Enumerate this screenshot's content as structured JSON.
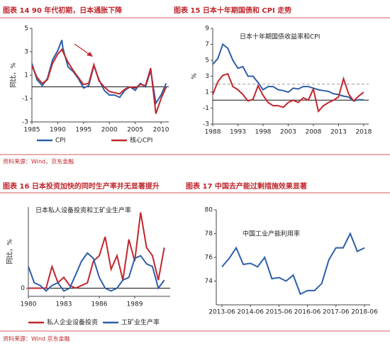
{
  "sources": [
    "资料来源：Wind，京东金融",
    "资料来源：Wind  京东金融"
  ],
  "chart_data": [
    {
      "type": "line",
      "figure_title": "图表 14   90 年代初期，日本通胀下降",
      "ylabel": "同比，%",
      "x": [
        1985,
        1986,
        1987,
        1988,
        1989,
        1990,
        1990.8,
        1991,
        1992,
        1993,
        1994,
        1995,
        1996,
        1997,
        1998,
        1999,
        2000,
        2001,
        2002,
        2003,
        2004,
        2005,
        2006,
        2007,
        2008,
        2009,
        2010,
        2011
      ],
      "series": [
        {
          "name": "CPI",
          "color": "#2e5fa8",
          "values": [
            2.0,
            0.6,
            0.1,
            0.7,
            2.3,
            3.1,
            4.0,
            3.3,
            1.7,
            1.3,
            0.7,
            -0.1,
            0.1,
            1.8,
            0.6,
            -0.3,
            -0.7,
            -0.7,
            -0.9,
            -0.3,
            0.0,
            -0.3,
            0.3,
            0.0,
            1.4,
            -1.4,
            -0.7,
            0.3
          ]
        },
        {
          "name": "核心CPI",
          "color": "#c0272d",
          "values": [
            1.8,
            0.8,
            0.3,
            0.6,
            2.0,
            2.8,
            3.2,
            3.0,
            2.1,
            1.4,
            0.8,
            0.2,
            0.3,
            1.9,
            0.5,
            0.0,
            -0.4,
            -0.5,
            -0.6,
            -0.2,
            0.0,
            -0.1,
            0.2,
            0.1,
            1.6,
            -2.3,
            -1.0,
            0.0
          ]
        }
      ],
      "xlim": [
        1985,
        2011.5
      ],
      "ylim": [
        -3,
        5
      ],
      "xticks": [
        1985,
        1990,
        1995,
        2000,
        2005,
        2010
      ],
      "yticks": [
        -3,
        -1,
        1,
        3,
        5
      ],
      "legend": "bottom"
    },
    {
      "type": "line",
      "figure_title": "图表 15 日本十年期国债和 CPI 走势",
      "title": "日本十年期国债收益率和CPI",
      "ylabel": "%",
      "x": [
        1988,
        1989,
        1990,
        1991,
        1992,
        1993,
        1994,
        1995,
        1996,
        1997,
        1998,
        1999,
        2000,
        2001,
        2002,
        2003,
        2004,
        2005,
        2006,
        2007,
        2008,
        2009,
        2010,
        2011,
        2012,
        2013,
        2014,
        2015,
        2016,
        2017,
        2018
      ],
      "series": [
        {
          "name": "日本十年期国债收益率",
          "color": "#2e5fa8",
          "values": [
            4.5,
            5.2,
            7.0,
            6.5,
            5.0,
            4.0,
            4.2,
            3.0,
            3.0,
            2.2,
            1.3,
            1.7,
            1.7,
            1.3,
            1.2,
            1.0,
            1.5,
            1.4,
            1.7,
            1.7,
            1.5,
            1.3,
            1.2,
            1.1,
            0.8,
            0.7,
            0.5,
            0.4,
            -0.1,
            0.05,
            0.05
          ]
        },
        {
          "name": "CPI",
          "color": "#c0272d",
          "values": [
            0.7,
            2.3,
            3.1,
            3.3,
            1.7,
            1.3,
            0.7,
            -0.1,
            0.1,
            1.8,
            0.6,
            -0.3,
            -0.7,
            -0.7,
            -0.9,
            -0.3,
            0.0,
            -0.3,
            0.3,
            0.0,
            1.4,
            -1.4,
            -0.7,
            -0.3,
            0.0,
            0.4,
            2.7,
            0.8,
            -0.1,
            0.5,
            1.0
          ]
        }
      ],
      "target_line": 2,
      "xlim": [
        1988,
        2019
      ],
      "ylim": [
        -3,
        9
      ],
      "xticks": [
        1988,
        1993,
        1998,
        2003,
        2008,
        2013,
        2018
      ],
      "yticks": [
        -3,
        -1,
        1,
        3,
        5,
        7,
        9
      ]
    },
    {
      "type": "line",
      "figure_title": "图表 16 日本投资加快的同时生产率并无显著提升",
      "title": "日本私人设备投资和工矿业生产率",
      "ylabel": "同比，%",
      "x": [
        1980,
        1980.5,
        1981,
        1981.5,
        1982,
        1982.5,
        1983,
        1983.5,
        1984,
        1984.5,
        1985,
        1985.5,
        1986,
        1986.5,
        1987,
        1987.5,
        1988,
        1988.5,
        1989,
        1989.5,
        1990,
        1990.5,
        1991,
        1991.5
      ],
      "series": [
        {
          "name": "私人企业设备投资",
          "color": "#c0272d",
          "values": [
            0,
            0,
            0,
            0,
            8,
            2,
            4,
            1,
            0,
            1,
            2,
            10,
            12,
            19,
            7,
            12,
            3,
            18,
            10,
            28,
            15,
            12,
            3,
            15
          ]
        },
        {
          "name": "工矿业生产率",
          "color": "#2e5fa8",
          "values": [
            8,
            2,
            1,
            -1,
            1,
            2,
            -1,
            0,
            5,
            10,
            13,
            11,
            4,
            0,
            -1,
            0,
            3,
            4,
            11,
            12,
            9,
            8,
            0,
            3
          ]
        }
      ],
      "xlim": [
        1980,
        1992
      ],
      "ylim": [
        -3,
        30
      ],
      "xticks": [
        1980,
        1983,
        1986,
        1989
      ],
      "yticks": [
        0
      ],
      "legend": "bottom"
    },
    {
      "type": "line",
      "figure_title": "图表 17 中国去产能过剩措施效果显著",
      "title": "中国工业产能利用率",
      "categories": [
        "2013-06",
        null,
        null,
        null,
        "2014-06",
        null,
        null,
        null,
        "2015-06",
        null,
        null,
        null,
        "2016-06",
        null,
        null,
        null,
        "2017-06",
        null,
        null,
        null,
        "2018-06"
      ],
      "series": [
        {
          "name": "中国工业产能利用率",
          "color": "#2e5fa8",
          "values": [
            75.2,
            75.9,
            76.8,
            75.4,
            75.5,
            75.2,
            76.0,
            74.2,
            74.3,
            74.0,
            74.5,
            72.9,
            73.2,
            73.2,
            73.8,
            75.8,
            76.8,
            76.8,
            78.0,
            76.5,
            76.8
          ]
        }
      ],
      "ylim": [
        72,
        80
      ],
      "yticks": [
        74,
        76,
        78,
        80
      ]
    }
  ]
}
